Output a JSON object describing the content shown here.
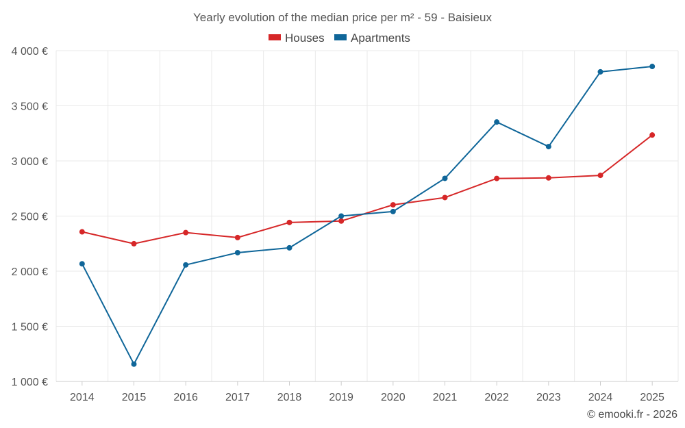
{
  "chart_data": {
    "type": "line",
    "title": "Yearly evolution of the median price per m² - 59 - Baisieux",
    "categories": [
      "2014",
      "2015",
      "2016",
      "2017",
      "2018",
      "2019",
      "2020",
      "2021",
      "2022",
      "2023",
      "2024",
      "2025"
    ],
    "series": [
      {
        "name": "Houses",
        "color": "#d62728",
        "values": [
          2357,
          2249,
          2350,
          2305,
          2442,
          2455,
          2602,
          2668,
          2841,
          2846,
          2869,
          3235
        ]
      },
      {
        "name": "Apartments",
        "color": "#0f6699",
        "values": [
          2067,
          1157,
          2057,
          2168,
          2212,
          2500,
          2541,
          2842,
          3353,
          3130,
          3808,
          3857
        ]
      }
    ],
    "ylim": [
      1000,
      4000
    ],
    "yticks": [
      1000,
      1500,
      2000,
      2500,
      3000,
      3500,
      4000
    ],
    "ytick_labels": [
      "1 000 €",
      "1 500 €",
      "2 000 €",
      "2 500 €",
      "3 000 €",
      "3 500 €",
      "4 000 €"
    ],
    "xlabel": "",
    "ylabel": "",
    "legend_position": "top-center",
    "grid": true
  },
  "credit": "© emooki.fr - 2026"
}
